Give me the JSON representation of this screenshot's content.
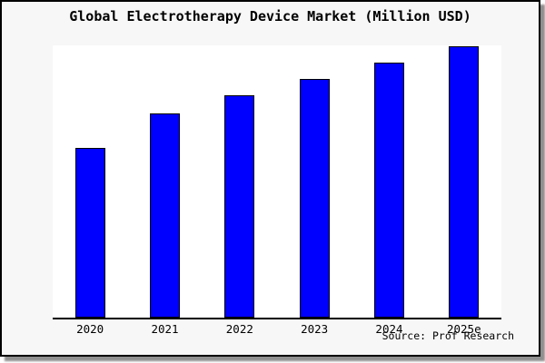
{
  "title": "Global Electrotherapy Device Market (Million USD)",
  "source_note": "Source: Prof Research",
  "colors": {
    "bar_fill": "#0000fe",
    "bar_border": "#000000",
    "frame_background": "#f7f7f7",
    "plot_background": "#ffffff",
    "axis_line": "#000000",
    "frame_border": "#000000",
    "shadow": "#8f8f8f"
  },
  "chart_data": {
    "type": "bar",
    "title": "Global Electrotherapy Device Market (Million USD)",
    "categories": [
      "2020",
      "2021",
      "2022",
      "2023",
      "2024",
      "2025e"
    ],
    "values": [
      62.8,
      75.5,
      82.0,
      88.2,
      94.0,
      100.3
    ],
    "xlabel": "",
    "ylabel": "",
    "ylim": [
      0,
      100.5
    ],
    "y_axis_labels_shown": false,
    "grid": false,
    "legend": false,
    "annotation": "Source: Prof Research"
  }
}
